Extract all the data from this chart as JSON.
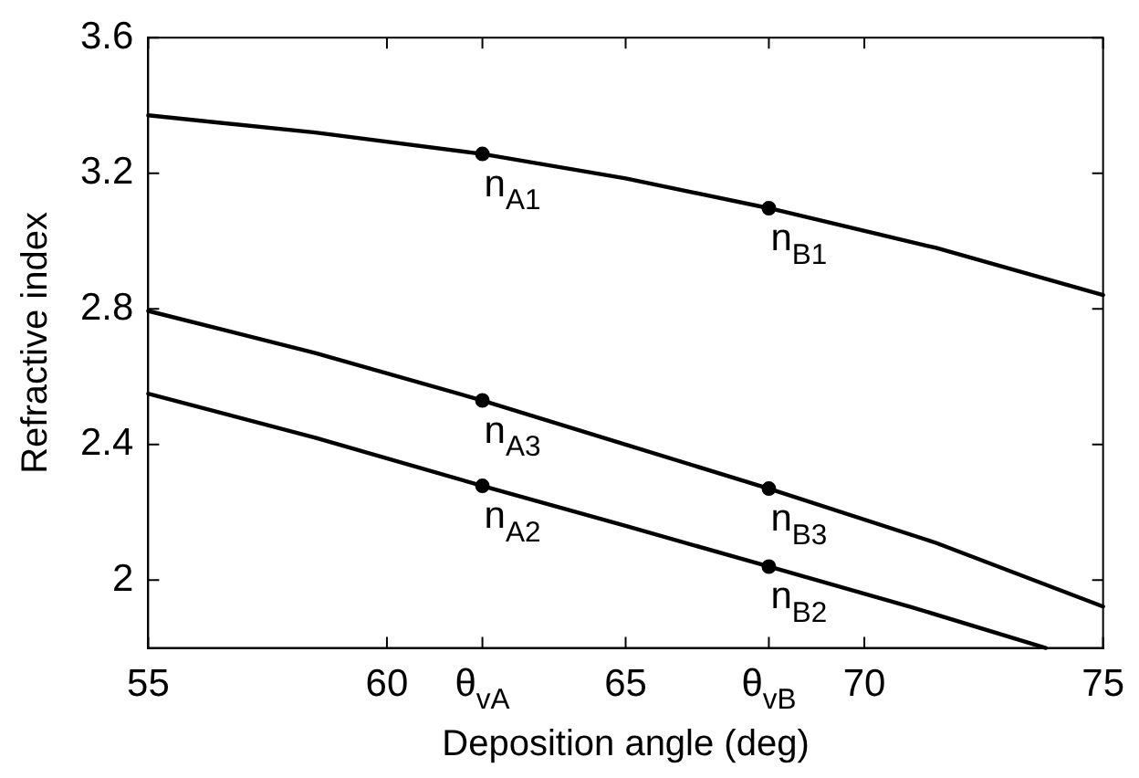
{
  "chart_data": {
    "type": "line",
    "xlabel": "Deposition angle (deg)",
    "ylabel": "Refractive index",
    "xlim": [
      55,
      75
    ],
    "ylim": [
      1.8,
      3.6
    ],
    "xticks": [
      55,
      60,
      {
        "value": 62,
        "label": "θ$_{vA}$"
      },
      65,
      {
        "value": 68,
        "label": "θ$_{vB}$"
      },
      70,
      75
    ],
    "yticks": [
      2,
      2.4,
      2.8,
      3.2,
      3.6
    ],
    "grid": false,
    "legend": false,
    "line_style": "solid",
    "series": [
      {
        "color": "#000000",
        "marker": "none",
        "x": [
          55,
          58.5,
          62,
          65,
          68,
          71.5,
          75
        ],
        "values": [
          3.371,
          3.32,
          3.257,
          3.185,
          3.097,
          2.98,
          2.841
        ]
      },
      {
        "color": "#000000",
        "marker": "none",
        "x": [
          55,
          58.5,
          62,
          65,
          68,
          71,
          73.8
        ],
        "values": [
          2.55,
          2.42,
          2.278,
          2.16,
          2.04,
          1.92,
          1.8
        ]
      },
      {
        "color": "#000000",
        "marker": "none",
        "x": [
          55,
          58.5,
          62,
          65,
          68,
          71.5,
          75
        ],
        "values": [
          2.794,
          2.67,
          2.53,
          2.4,
          2.27,
          2.11,
          1.922
        ]
      },
      {
        "type": "scatter",
        "color": "#000000",
        "marker": "circle",
        "x": [
          62,
          68,
          62,
          68,
          62,
          68
        ],
        "values": [
          3.257,
          3.097,
          2.53,
          2.27,
          2.278,
          2.04
        ],
        "value_labels": [
          "n$_{A1}$",
          "n$_{B1}$",
          "n$_{A3}$",
          "n$_{B3}$",
          "n$_{A2}$",
          "n$_{B2}$"
        ]
      }
    ]
  }
}
